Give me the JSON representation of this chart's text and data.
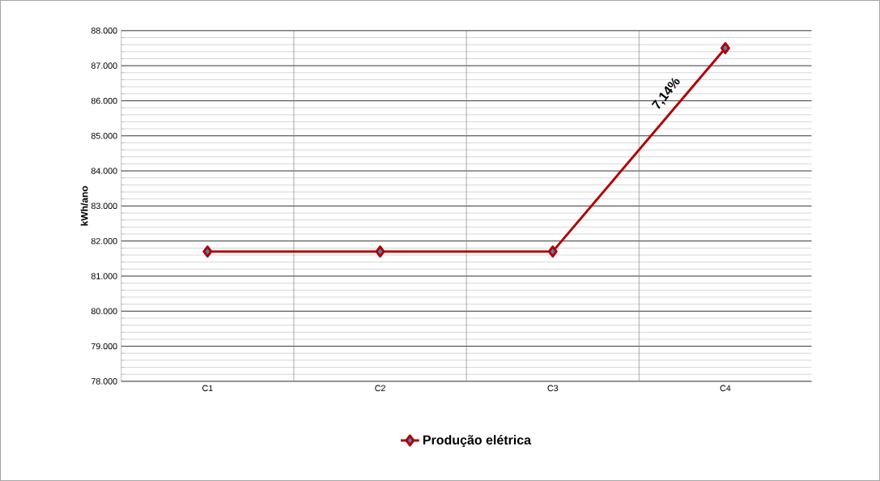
{
  "chart_data": {
    "type": "line",
    "ylabel": "kWh/ano",
    "categories": [
      "C1",
      "C2",
      "C3",
      "C4"
    ],
    "series": [
      {
        "name": "Produção elétrica",
        "color": "#b00000",
        "values": [
          81700,
          81700,
          81700,
          87500
        ]
      }
    ],
    "ylim": [
      78000,
      88000
    ],
    "yticks": [
      {
        "value": 78000,
        "label": "78.000"
      },
      {
        "value": 79000,
        "label": "79.000"
      },
      {
        "value": 80000,
        "label": "80.000"
      },
      {
        "value": 81000,
        "label": "81.000"
      },
      {
        "value": 82000,
        "label": "82.000"
      },
      {
        "value": 83000,
        "label": "83.000"
      },
      {
        "value": 84000,
        "label": "84.000"
      },
      {
        "value": 85000,
        "label": "85.000"
      },
      {
        "value": 86000,
        "label": "86.000"
      },
      {
        "value": 87000,
        "label": "87.000"
      },
      {
        "value": 88000,
        "label": "88.000"
      }
    ],
    "grid": true,
    "legend": "bottom",
    "marker": "diamond",
    "line_style": "solid",
    "annotations": [
      "7,14%"
    ]
  }
}
